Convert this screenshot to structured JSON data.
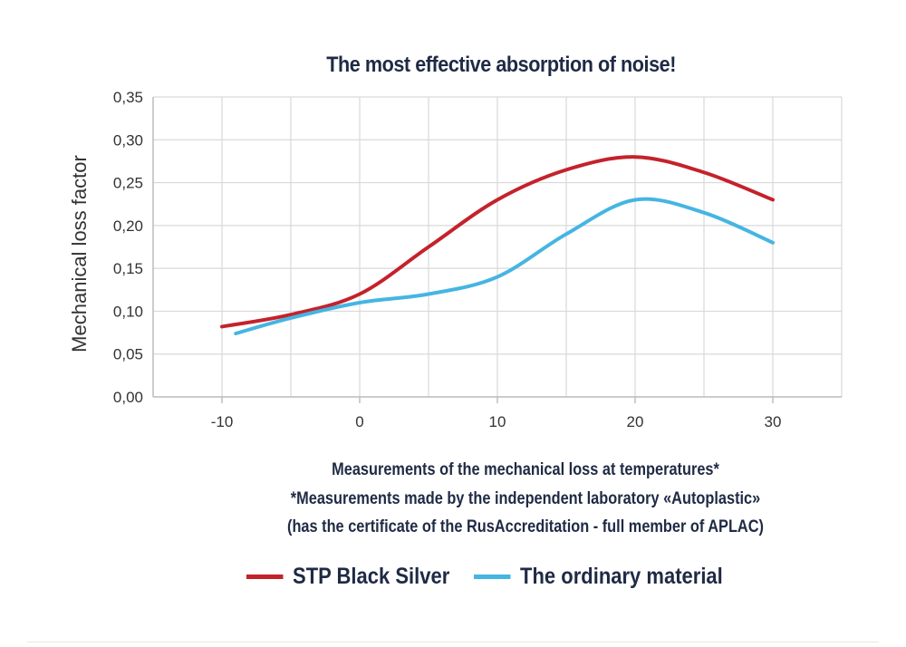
{
  "chart_data": {
    "type": "line",
    "title": "The most effective absorption of noise!",
    "ylabel": "Mechanical loss factor",
    "xlabel": "Measurements of the mechanical loss at temperatures*",
    "notes": [
      "*Measurements made by the independent laboratory «Autoplastic»",
      "(has the certificate of the RusAccreditation - full member of APLAC)"
    ],
    "xlim": [
      -15,
      35
    ],
    "ylim": [
      0,
      0.35
    ],
    "x_ticks": [
      -10,
      0,
      10,
      20,
      30
    ],
    "x_tick_labels": [
      "-10",
      "0",
      "10",
      "20",
      "30"
    ],
    "y_ticks": [
      0,
      0.05,
      0.1,
      0.15,
      0.2,
      0.25,
      0.3,
      0.35
    ],
    "y_tick_labels": [
      "0,00",
      "0,05",
      "0,10",
      "0,15",
      "0,20",
      "0,25",
      "0,30",
      "0,35"
    ],
    "grid": true,
    "legend_position": "bottom",
    "series": [
      {
        "name": "STP Black Silver",
        "color": "#c4222b",
        "x": [
          -10,
          -5,
          0,
          5,
          10,
          15,
          20,
          25,
          30
        ],
        "values": [
          0.082,
          0.096,
          0.12,
          0.175,
          0.23,
          0.265,
          0.28,
          0.262,
          0.23
        ]
      },
      {
        "name": "The ordinary material",
        "color": "#45b5e2",
        "x": [
          -9,
          -5,
          0,
          5,
          10,
          15,
          20,
          25,
          30
        ],
        "values": [
          0.074,
          0.092,
          0.11,
          0.12,
          0.14,
          0.19,
          0.23,
          0.215,
          0.18
        ]
      }
    ]
  }
}
